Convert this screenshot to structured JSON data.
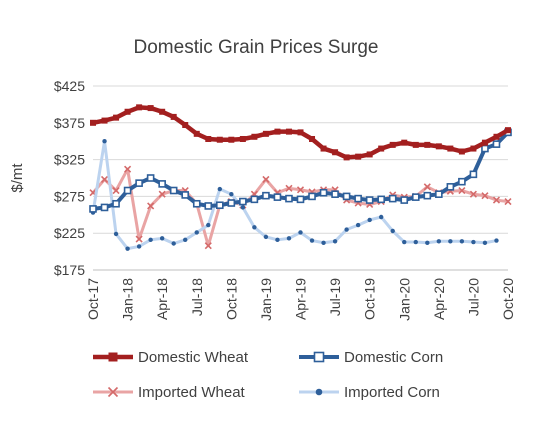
{
  "chart_data": {
    "type": "line",
    "title": "Domestic Grain Prices Surge",
    "ylabel": "$/mt",
    "xlabel": "",
    "ylim": [
      175,
      425
    ],
    "y_ticks": [
      "$175",
      "$225",
      "$275",
      "$325",
      "$375",
      "$425"
    ],
    "y_tick_values": [
      175,
      225,
      275,
      325,
      375,
      425
    ],
    "x_ticks": [
      "Oct-17",
      "Jan-18",
      "Apr-18",
      "Jul-18",
      "Oct-18",
      "Jan-19",
      "Apr-19",
      "Jul-19",
      "Oct-19",
      "Jan-20",
      "Apr-20",
      "Jul-20",
      "Oct-20"
    ],
    "x_tick_months": [
      0,
      3,
      6,
      9,
      12,
      15,
      18,
      21,
      24,
      27,
      30,
      33,
      36
    ],
    "grid": "horizontal",
    "legend": "bottom",
    "series": [
      {
        "name": "Domestic Wheat",
        "color": "#a31f1f",
        "marker": "square-filled",
        "x": [
          0,
          1,
          2,
          3,
          4,
          5,
          6,
          7,
          8,
          9,
          10,
          11,
          12,
          13,
          14,
          15,
          16,
          17,
          18,
          19,
          20,
          21,
          22,
          23,
          24,
          25,
          26,
          27,
          28,
          29,
          30,
          31,
          32,
          33,
          34,
          35,
          36
        ],
        "y": [
          375,
          378,
          382,
          390,
          396,
          395,
          390,
          383,
          372,
          360,
          353,
          352,
          352,
          353,
          356,
          360,
          363,
          363,
          362,
          353,
          340,
          335,
          328,
          329,
          332,
          340,
          345,
          348,
          345,
          345,
          343,
          340,
          336,
          340,
          348,
          356,
          365
        ]
      },
      {
        "name": "Domestic Corn",
        "color": "#2e5f9a",
        "marker": "square-open",
        "x": [
          0,
          1,
          2,
          3,
          4,
          5,
          6,
          7,
          8,
          9,
          10,
          11,
          12,
          13,
          14,
          15,
          16,
          17,
          18,
          19,
          20,
          21,
          22,
          23,
          24,
          25,
          26,
          27,
          28,
          29,
          30,
          31,
          32,
          33,
          34,
          35,
          36
        ],
        "y": [
          258,
          260,
          265,
          283,
          293,
          300,
          292,
          283,
          277,
          265,
          262,
          263,
          266,
          268,
          271,
          276,
          274,
          272,
          271,
          275,
          280,
          278,
          275,
          272,
          270,
          271,
          272,
          270,
          274,
          276,
          278,
          288,
          295,
          305,
          340,
          346,
          362
        ]
      },
      {
        "name": "Imported Wheat",
        "color": "#e9a4a4",
        "marker": "x",
        "x": [
          0,
          1,
          2,
          3,
          4,
          5,
          6,
          7,
          8,
          9,
          10,
          11,
          12,
          13,
          14,
          15,
          16,
          17,
          18,
          19,
          20,
          21,
          22,
          23,
          24,
          25,
          26,
          27,
          28,
          29,
          30,
          31,
          32,
          33,
          34,
          35,
          36
        ],
        "y": [
          280,
          298,
          283,
          312,
          217,
          262,
          278,
          283,
          283,
          265,
          208,
          263,
          268,
          263,
          278,
          298,
          280,
          286,
          284,
          281,
          284,
          284,
          270,
          266,
          264,
          268,
          277,
          274,
          275,
          288,
          280,
          282,
          283,
          278,
          276,
          270,
          268
        ]
      },
      {
        "name": "Imported Corn",
        "color": "#bcd3ef",
        "marker": "dot",
        "x": [
          0,
          1,
          2,
          3,
          4,
          5,
          6,
          7,
          8,
          9,
          10,
          11,
          12,
          13,
          14,
          15,
          16,
          17,
          18,
          19,
          20,
          21,
          22,
          23,
          24,
          25,
          26,
          27,
          28,
          29,
          30,
          31,
          32,
          33,
          34,
          35
        ],
        "y": [
          253,
          350,
          224,
          204,
          207,
          216,
          218,
          211,
          216,
          226,
          236,
          285,
          278,
          260,
          233,
          220,
          216,
          218,
          226,
          215,
          212,
          214,
          230,
          236,
          243,
          247,
          228,
          213,
          213,
          212,
          214,
          214,
          214,
          213,
          212,
          215
        ]
      }
    ]
  }
}
